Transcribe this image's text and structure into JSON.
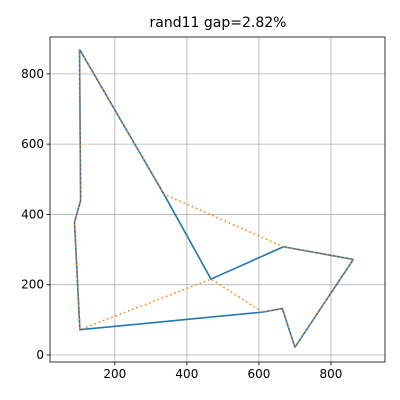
{
  "chart_data": {
    "type": "line",
    "title": "rand11 gap=2.82%",
    "xlabel": "",
    "ylabel": "",
    "xlim": [
      20,
      950
    ],
    "ylim": [
      -20,
      905
    ],
    "xticks": [
      200,
      400,
      600,
      800
    ],
    "yticks": [
      0,
      200,
      400,
      600,
      800
    ],
    "grid": true,
    "series": [
      {
        "color": "#1f77b4",
        "style": "solid",
        "points": [
          [
            102,
            870
          ],
          [
            105,
            440
          ],
          [
            88,
            378
          ],
          [
            103,
            72
          ],
          [
            610,
            122
          ],
          [
            665,
            132
          ],
          [
            700,
            22
          ],
          [
            862,
            272
          ],
          [
            668,
            308
          ],
          [
            467,
            216
          ],
          [
            336,
            458
          ],
          [
            102,
            870
          ]
        ]
      },
      {
        "color": "#ff7f0e",
        "style": "dotted",
        "points": [
          [
            102,
            870
          ],
          [
            105,
            440
          ],
          [
            88,
            378
          ],
          [
            103,
            72
          ],
          [
            467,
            216
          ],
          [
            610,
            122
          ],
          [
            665,
            132
          ],
          [
            700,
            22
          ],
          [
            862,
            272
          ],
          [
            668,
            308
          ],
          [
            336,
            458
          ],
          [
            102,
            870
          ]
        ]
      }
    ]
  }
}
